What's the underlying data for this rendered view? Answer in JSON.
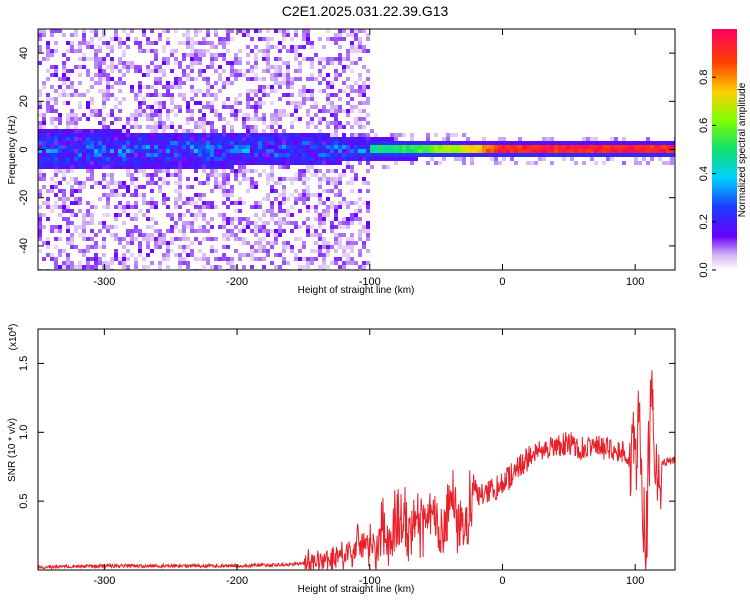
{
  "title": "C2E1.2025.031.22.39.G13",
  "chart_data": [
    {
      "type": "heatmap",
      "xlabel": "Height of straight line (km)",
      "ylabel": "Frequency (Hz)",
      "xlim": [
        -350,
        130
      ],
      "ylim": [
        -50,
        50
      ],
      "xticks": [
        -300,
        -200,
        -100,
        0,
        100
      ],
      "yticks": [
        -40,
        -20,
        0,
        20,
        40
      ],
      "colorbar": {
        "label": "Normalized spectral amplitude",
        "range": [
          0.0,
          1.0
        ],
        "ticks": [
          0.0,
          0.2,
          0.4,
          0.6,
          0.8
        ]
      },
      "band_center_hz": 0,
      "band_halfwidth_hz": [
        {
          "x": -350,
          "value": 8
        },
        {
          "x": -150,
          "value": 7
        },
        {
          "x": -110,
          "value": 5
        },
        {
          "x": -20,
          "value": 3
        },
        {
          "x": 130,
          "value": 3
        }
      ],
      "peak_amplitude": [
        {
          "x": -350,
          "value": 0.25
        },
        {
          "x": -130,
          "value": 0.3
        },
        {
          "x": -100,
          "value": 0.5
        },
        {
          "x": -60,
          "value": 0.6
        },
        {
          "x": -20,
          "value": 0.8
        },
        {
          "x": 0,
          "value": 1.0
        },
        {
          "x": 130,
          "value": 1.0
        }
      ]
    },
    {
      "type": "line",
      "xlabel": "Height of straight line (km)",
      "ylabel": "SNR (10 * v/v)",
      "y_multiplier": "(x10^4)",
      "xlim": [
        -350,
        130
      ],
      "ylim": [
        0,
        1.75
      ],
      "xticks": [
        -300,
        -200,
        -100,
        0,
        100
      ],
      "yticks": [
        0.5,
        1.0,
        1.5
      ],
      "ytick_labels": [
        "0.5",
        "1.0",
        "1.5"
      ],
      "series": [
        {
          "color": "#e8202a",
          "x": [
            -350,
            -300,
            -250,
            -200,
            -160,
            -140,
            -120,
            -100,
            -90,
            -80,
            -70,
            -60,
            -50,
            -45,
            -40,
            -30,
            -20,
            -10,
            0,
            10,
            20,
            30,
            40,
            50,
            60,
            70,
            80,
            90,
            100,
            103,
            105,
            108,
            112,
            116,
            120,
            130
          ],
          "y": [
            0.02,
            0.03,
            0.03,
            0.03,
            0.04,
            0.06,
            0.1,
            0.16,
            0.22,
            0.3,
            0.35,
            0.32,
            0.4,
            0.2,
            0.5,
            0.35,
            0.55,
            0.58,
            0.62,
            0.72,
            0.82,
            0.86,
            0.9,
            0.92,
            0.88,
            0.9,
            0.88,
            0.86,
            0.8,
            1.2,
            0.5,
            0.15,
            1.3,
            0.8,
            0.78,
            0.8
          ]
        }
      ]
    }
  ]
}
